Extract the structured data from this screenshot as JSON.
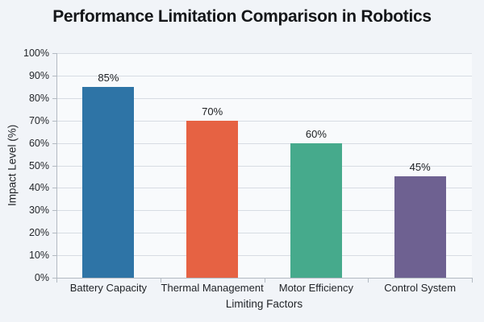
{
  "chart_data": {
    "type": "bar",
    "title": "Performance Limitation Comparison in Robotics",
    "categories": [
      "Battery Capacity",
      "Thermal Management",
      "Motor Efficiency",
      "Control System"
    ],
    "values": [
      85,
      70,
      60,
      45
    ],
    "value_labels": [
      "85%",
      "70%",
      "60%",
      "45%"
    ],
    "bar_colors": [
      "#2e74a6",
      "#e66243",
      "#46aa8c",
      "#6e6191"
    ],
    "xlabel": "Limiting Factors",
    "ylabel": "Impact Level (%)",
    "ylim": [
      0,
      100
    ],
    "ytick_step": 10,
    "ytick_labels": [
      "0%",
      "10%",
      "20%",
      "30%",
      "40%",
      "50%",
      "60%",
      "70%",
      "80%",
      "90%",
      "100%"
    ],
    "grid": true,
    "legend": false
  },
  "colors": {
    "background": "#f1f4f8",
    "plot_background": "#f8fafc",
    "gridline": "#d7dce3",
    "axis": "#b3bac2",
    "title_text": "#15171a",
    "label_text": "#1f2226"
  }
}
